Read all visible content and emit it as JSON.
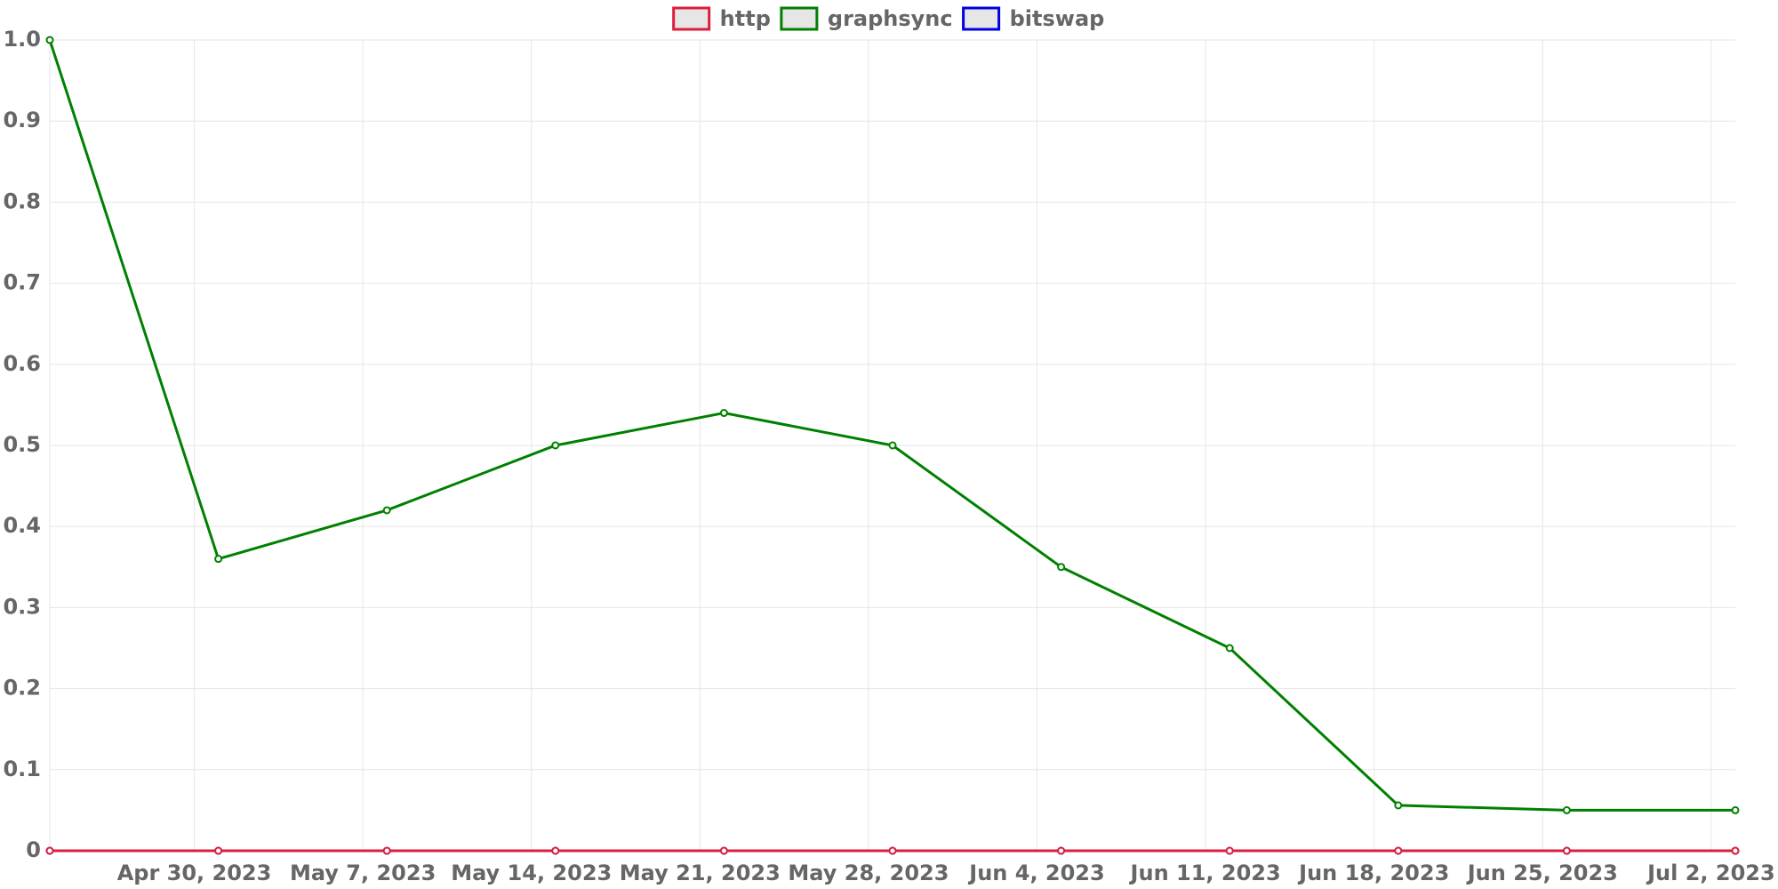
{
  "chart_data": {
    "type": "line",
    "x": [
      "2023-04-24",
      "2023-05-01",
      "2023-05-08",
      "2023-05-15",
      "2023-05-22",
      "2023-05-29",
      "2023-06-05",
      "2023-06-12",
      "2023-06-19",
      "2023-06-26",
      "2023-07-03"
    ],
    "series": [
      {
        "name": "http",
        "color": "#dc1e3c",
        "values": [
          0,
          0,
          0,
          0,
          0,
          0,
          0,
          0,
          0,
          0,
          0
        ]
      },
      {
        "name": "graphsync",
        "color": "#008000",
        "values": [
          1.0,
          0.36,
          0.42,
          0.5,
          0.54,
          0.5,
          0.35,
          0.25,
          0.056,
          0.05,
          0.05
        ]
      },
      {
        "name": "bitswap",
        "color": "#0000e0",
        "values": [
          0,
          0,
          0,
          0,
          0,
          0,
          0,
          0,
          0,
          0,
          0
        ]
      }
    ],
    "xlim": [
      "2023-04-24",
      "2023-07-03"
    ],
    "xticks": [
      {
        "value": "2023-04-30",
        "label": "Apr 30, 2023"
      },
      {
        "value": "2023-05-07",
        "label": "May 7, 2023"
      },
      {
        "value": "2023-05-14",
        "label": "May 14, 2023"
      },
      {
        "value": "2023-05-21",
        "label": "May 21, 2023"
      },
      {
        "value": "2023-05-28",
        "label": "May 28, 2023"
      },
      {
        "value": "2023-06-04",
        "label": "Jun 4, 2023"
      },
      {
        "value": "2023-06-11",
        "label": "Jun 11, 2023"
      },
      {
        "value": "2023-06-18",
        "label": "Jun 18, 2023"
      },
      {
        "value": "2023-06-25",
        "label": "Jun 25, 2023"
      },
      {
        "value": "2023-07-02",
        "label": "Jul 2, 2023"
      }
    ],
    "ylim": [
      0,
      1
    ],
    "yticks": [
      0,
      0.1,
      0.2,
      0.3,
      0.4,
      0.5,
      0.6,
      0.7,
      0.8,
      0.9,
      {
        "value": 1,
        "label": "1.0"
      }
    ],
    "grid": true,
    "legend": "top"
  }
}
